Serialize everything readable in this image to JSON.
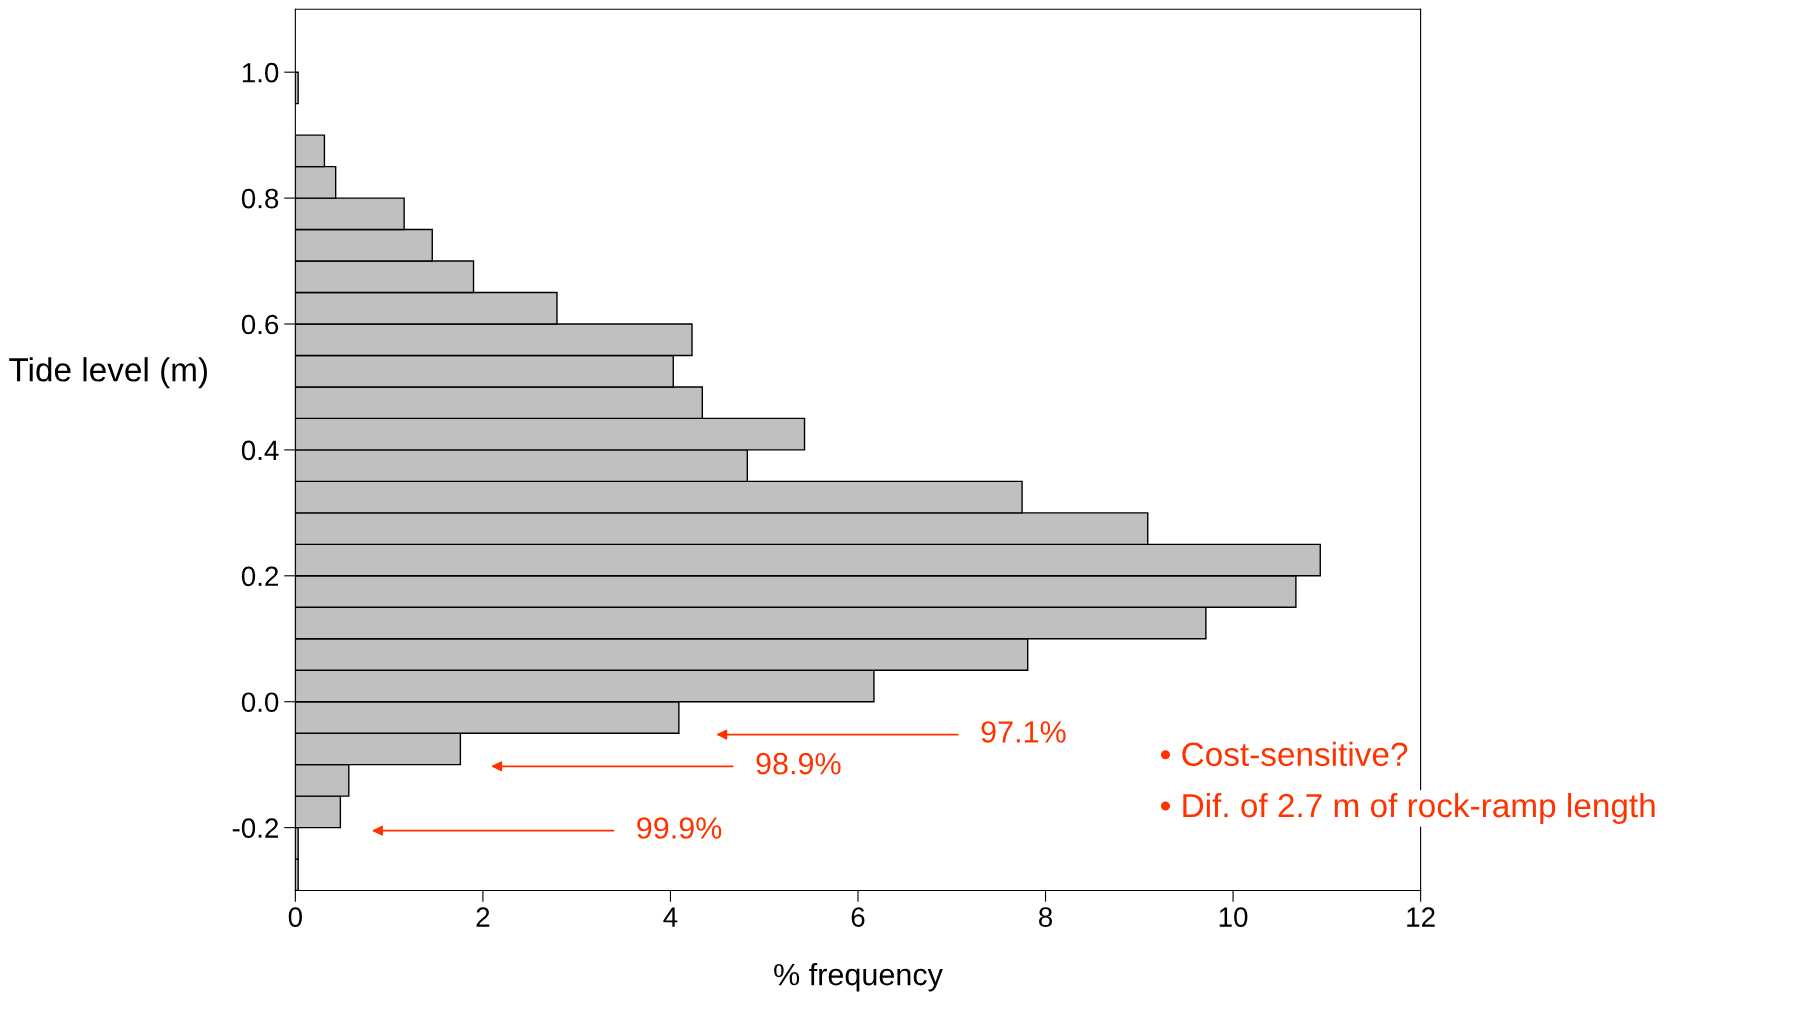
{
  "chart_data": {
    "type": "histogram",
    "orientation": "horizontal",
    "xlabel": "% frequency",
    "ylabel": "Tide level (m)",
    "bins": [
      -0.3,
      -0.25,
      -0.2,
      -0.15,
      -0.1,
      -0.05,
      0.0,
      0.05,
      0.1,
      0.15,
      0.2,
      0.25,
      0.3,
      0.35,
      0.4,
      0.45,
      0.5,
      0.55,
      0.6,
      0.65,
      0.7,
      0.75,
      0.8,
      0.85,
      0.9,
      0.95,
      1.0
    ],
    "values": [
      0.03,
      0.03,
      0.48,
      0.57,
      1.76,
      4.09,
      6.17,
      7.81,
      9.71,
      10.67,
      10.93,
      9.09,
      7.75,
      4.82,
      5.43,
      4.34,
      4.03,
      4.23,
      2.79,
      1.9,
      1.46,
      1.16,
      0.43,
      0.31,
      0,
      0.03
    ],
    "color": "#c0c0c0",
    "xlim": [
      0,
      12
    ],
    "ylim": [
      -0.3,
      1.1
    ],
    "xticks": [
      0,
      2,
      4,
      6,
      8,
      10,
      12
    ],
    "yticks": [
      -0.2,
      {
        "value": 0,
        "label": "0.0"
      },
      0.2,
      0.4,
      0.6,
      0.8,
      {
        "value": 1,
        "label": "1.0"
      }
    ],
    "grid": false,
    "annotations": [
      "97.1%",
      "98.9%",
      "99.9%",
      "• Cost-sensitive?",
      "• Dif. of 2.7 m of rock-ramp length"
    ]
  }
}
